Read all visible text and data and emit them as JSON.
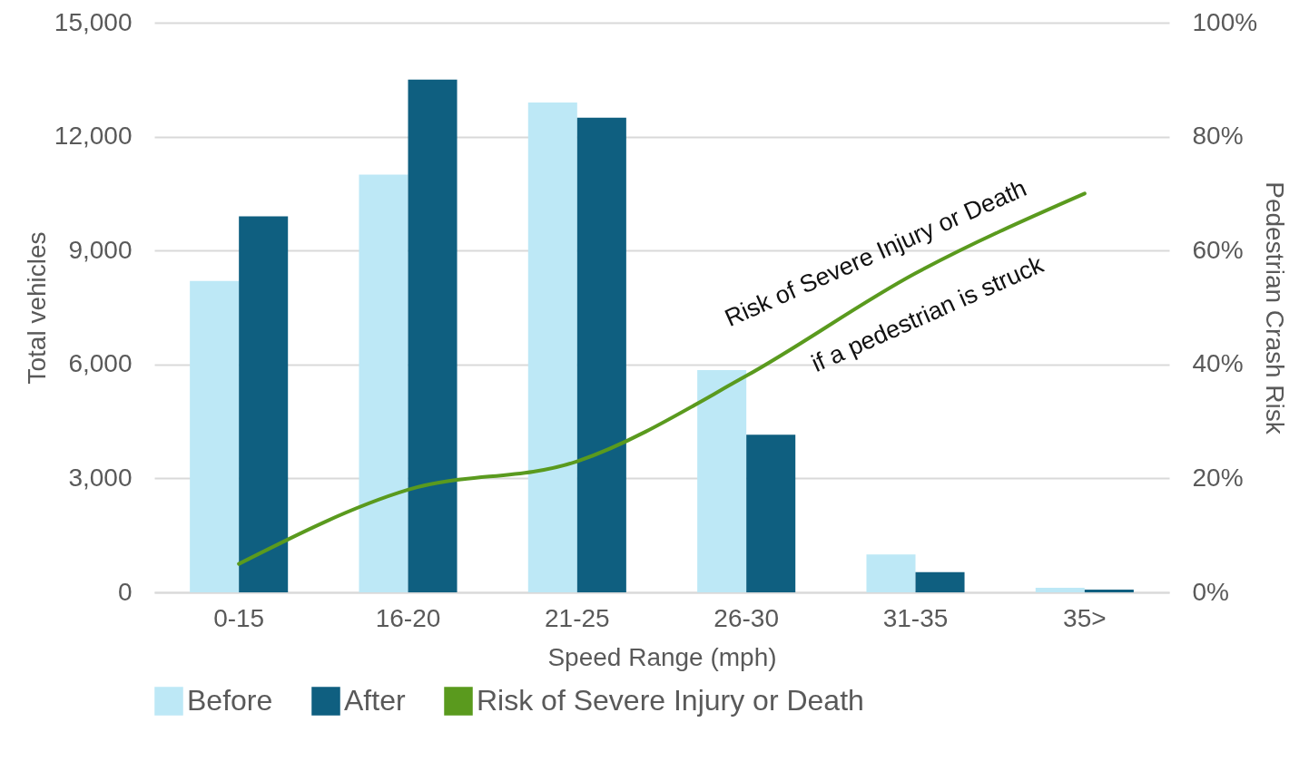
{
  "chart_data": {
    "type": "bar",
    "xlabel": "Speed Range (mph)",
    "ylabel": "Total vehicles",
    "y2label": "Pedestrian Crash Risk",
    "categories": [
      "0-15",
      "16-20",
      "21-25",
      "26-30",
      "31-35",
      "35>"
    ],
    "series": [
      {
        "name": "Before",
        "color": "#bde8f6",
        "values": [
          8200,
          11000,
          12900,
          5850,
          1000,
          120
        ]
      },
      {
        "name": "After",
        "color": "#0f5f80",
        "values": [
          9900,
          13500,
          12500,
          4150,
          530,
          70
        ]
      },
      {
        "name": "Risk of Severe Injury or Death",
        "color": "#5a9a1e",
        "type": "line",
        "axis": "y2",
        "values": [
          5,
          18,
          23,
          38,
          56,
          70
        ]
      }
    ],
    "ylim": [
      0,
      15000
    ],
    "yticks": [
      0,
      {
        "value": 3000,
        "label": "3,000"
      },
      {
        "value": 6000,
        "label": "6,000"
      },
      {
        "value": 9000,
        "label": "9,000"
      },
      {
        "value": 12000,
        "label": "12,000"
      },
      {
        "value": 15000,
        "label": "15,000"
      }
    ],
    "y2lim": [
      0,
      100
    ],
    "y2ticks": [
      {
        "value": 0,
        "label": "0%"
      },
      {
        "value": 20,
        "label": "20%"
      },
      {
        "value": 40,
        "label": "40%"
      },
      {
        "value": 60,
        "label": "60%"
      },
      {
        "value": 80,
        "label": "80%"
      },
      {
        "value": 100,
        "label": "100%"
      }
    ],
    "annotations": [
      "Risk of Severe Injury or Death",
      "if a pedestrian is struck"
    ],
    "grid": "y",
    "legend": "bottom"
  }
}
